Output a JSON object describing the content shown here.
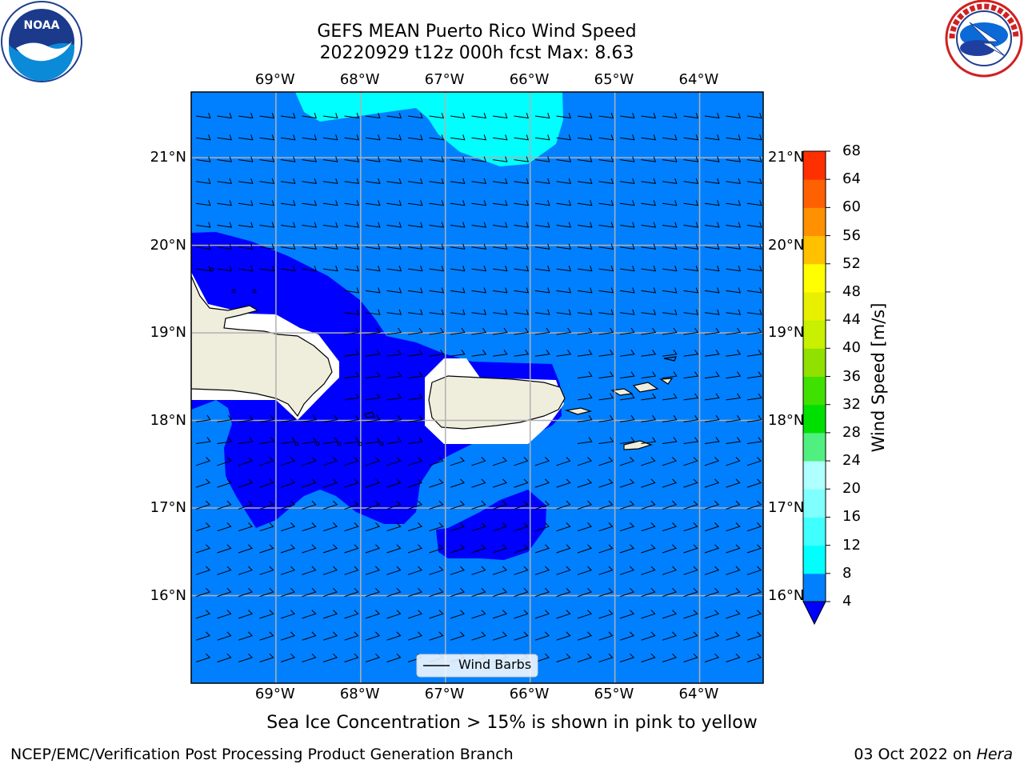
{
  "title": {
    "line1": "GEFS MEAN Puerto Rico Wind Speed",
    "line2": "20220929 t12z 000h fcst   Max: 8.63"
  },
  "logos": {
    "left": {
      "name": "noaa-logo",
      "text": "NOAA"
    },
    "right": {
      "name": "nws-logo",
      "text": "NATIONAL WEATHER SERVICE"
    }
  },
  "axes": {
    "lon_labels": [
      "69°W",
      "68°W",
      "67°W",
      "66°W",
      "65°W",
      "64°W"
    ],
    "lat_labels": [
      "21°N",
      "20°N",
      "19°N",
      "18°N",
      "17°N",
      "16°N"
    ],
    "lon_range": [
      -70.0,
      -63.25
    ],
    "lat_range": [
      15.0,
      21.75
    ]
  },
  "colorbar": {
    "label": "Wind Speed [m/s]",
    "ticks": [
      "68",
      "64",
      "60",
      "56",
      "52",
      "48",
      "44",
      "40",
      "36",
      "32",
      "28",
      "24",
      "20",
      "16",
      "12",
      "8",
      "4"
    ],
    "colors": [
      "#0000ff",
      "#0080ff",
      "#00ffff",
      "#40ffff",
      "#80ffff",
      "#b0ffff",
      "#50f080",
      "#00e000",
      "#40e000",
      "#90e000",
      "#c8f000",
      "#e8f000",
      "#ffff00",
      "#ffc000",
      "#ff9000",
      "#ff6000",
      "#ff3000",
      "#ff0000"
    ]
  },
  "legend": {
    "label": "Wind Barbs"
  },
  "note": "Sea Ice Concentration > 15% is shown in pink to yellow",
  "footer": {
    "left": "NCEP/EMC/Verification Post Processing Product Generation Branch",
    "date": "03 Oct 2022 on ",
    "machine": "Hera"
  },
  "colors": {
    "ocean_4_8": "#0080ff",
    "calm_lt_4": "#0000ff",
    "band_8_12": "#00ffff",
    "land": "#efeedd",
    "masked": "#ffffff"
  }
}
